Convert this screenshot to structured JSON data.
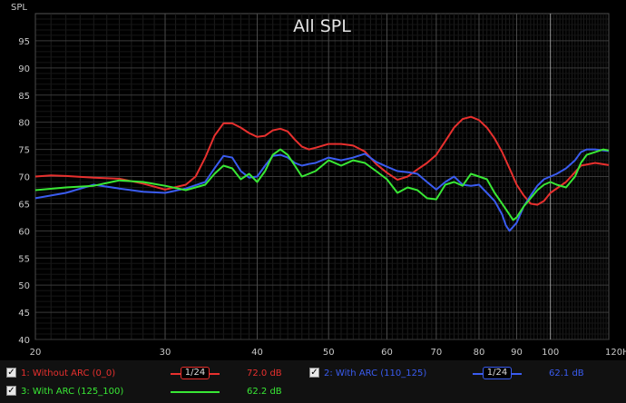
{
  "chart_data": {
    "type": "line",
    "title": "All SPL",
    "ylabel": "SPL",
    "xunit": "Hz",
    "xscale": "log",
    "xlim": [
      20,
      120
    ],
    "ylim": [
      40,
      100
    ],
    "xticks": [
      20,
      30,
      40,
      50,
      60,
      70,
      80,
      90,
      100,
      120
    ],
    "xtick_labels": [
      "20",
      "30",
      "40",
      "50",
      "60",
      "70",
      "80",
      "90",
      "100",
      "120Hz"
    ],
    "yticks": [
      40,
      45,
      50,
      55,
      60,
      65,
      70,
      75,
      80,
      85,
      90,
      95
    ],
    "grid": true,
    "series": [
      {
        "name": "1: Without ARC (0_0)",
        "color": "#e8302e",
        "smoothing": "1/24",
        "level": "72.0 dB",
        "x": [
          20,
          21,
          22,
          24,
          26,
          28,
          30,
          32,
          33,
          34,
          35,
          36,
          37,
          38,
          39,
          40,
          41,
          42,
          43,
          44,
          45,
          46,
          47,
          48,
          50,
          52,
          54,
          56,
          58,
          60,
          62,
          64,
          66,
          68,
          70,
          72,
          74,
          76,
          78,
          80,
          82,
          84,
          86,
          88,
          90,
          92,
          94,
          96,
          98,
          100,
          105,
          110,
          115,
          120
        ],
        "y": [
          70.0,
          70.2,
          70.1,
          69.8,
          69.6,
          68.7,
          67.6,
          68.5,
          70.0,
          73.5,
          77.5,
          79.8,
          79.8,
          79.0,
          78.0,
          77.3,
          77.5,
          78.5,
          78.8,
          78.3,
          76.8,
          75.5,
          75.0,
          75.3,
          76.0,
          76.0,
          75.7,
          74.6,
          72.3,
          70.7,
          69.4,
          70.0,
          71.3,
          72.5,
          74.0,
          76.5,
          79.0,
          80.6,
          81.0,
          80.4,
          79.0,
          77.0,
          74.5,
          71.5,
          68.5,
          66.5,
          65.0,
          64.8,
          65.5,
          67.0,
          69.0,
          72.0,
          72.5,
          72.1
        ]
      },
      {
        "name": "2: With ARC (110_125)",
        "color": "#3a5cf0",
        "smoothing": "1/24",
        "level": "62.1 dB",
        "x": [
          20,
          22,
          24,
          26,
          28,
          30,
          32,
          34,
          35,
          36,
          37,
          38,
          39,
          40,
          41,
          42,
          43,
          44,
          45,
          46,
          47,
          48,
          50,
          52,
          54,
          56,
          58,
          60,
          62,
          64,
          66,
          68,
          70,
          72,
          74,
          76,
          78,
          80,
          82,
          84,
          86,
          87,
          88,
          90,
          92,
          94,
          96,
          98,
          100,
          102,
          105,
          108,
          110,
          112,
          115,
          118,
          120
        ],
        "y": [
          66.0,
          67.0,
          68.5,
          67.8,
          67.2,
          67.0,
          67.8,
          69.0,
          71.5,
          73.8,
          73.5,
          71.0,
          69.8,
          70.0,
          72.0,
          73.8,
          74.0,
          73.5,
          72.5,
          72.0,
          72.3,
          72.5,
          73.5,
          73.0,
          73.5,
          74.2,
          72.7,
          71.8,
          71.0,
          70.8,
          70.5,
          69.0,
          67.6,
          69.0,
          70.0,
          68.5,
          68.3,
          68.5,
          67.0,
          65.5,
          63.0,
          61.0,
          60.0,
          61.5,
          64.5,
          66.5,
          68.3,
          69.5,
          70.0,
          70.5,
          71.5,
          73.0,
          74.5,
          75.0,
          75.0,
          74.8,
          74.7
        ]
      },
      {
        "name": "3: With ARC (125_100)",
        "color": "#39e835",
        "smoothing": "",
        "level": "62.2 dB",
        "x": [
          20,
          22,
          24,
          26,
          28,
          30,
          32,
          34,
          35,
          36,
          37,
          38,
          39,
          40,
          41,
          42,
          43,
          44,
          45,
          46,
          47,
          48,
          50,
          52,
          54,
          56,
          58,
          60,
          62,
          64,
          66,
          68,
          70,
          72,
          74,
          76,
          78,
          80,
          82,
          84,
          86,
          88,
          89,
          90,
          92,
          94,
          96,
          98,
          100,
          102,
          105,
          108,
          110,
          112,
          115,
          118,
          120
        ],
        "y": [
          67.5,
          68.0,
          68.3,
          69.3,
          69.0,
          68.3,
          67.5,
          68.5,
          70.5,
          72.0,
          71.5,
          69.5,
          70.5,
          69.0,
          71.0,
          74.0,
          75.0,
          74.0,
          72.0,
          70.0,
          70.5,
          71.0,
          73.0,
          72.0,
          73.0,
          72.5,
          71.0,
          69.5,
          67.0,
          68.0,
          67.5,
          66.0,
          65.8,
          68.5,
          69.0,
          68.3,
          70.5,
          70.0,
          69.5,
          67.0,
          65.0,
          63.0,
          62.0,
          62.5,
          64.5,
          66.0,
          67.5,
          68.5,
          69.0,
          68.5,
          68.0,
          70.0,
          72.5,
          74.0,
          74.5,
          75.0,
          74.8
        ]
      }
    ]
  },
  "legend": {
    "checkmark": "✓"
  }
}
